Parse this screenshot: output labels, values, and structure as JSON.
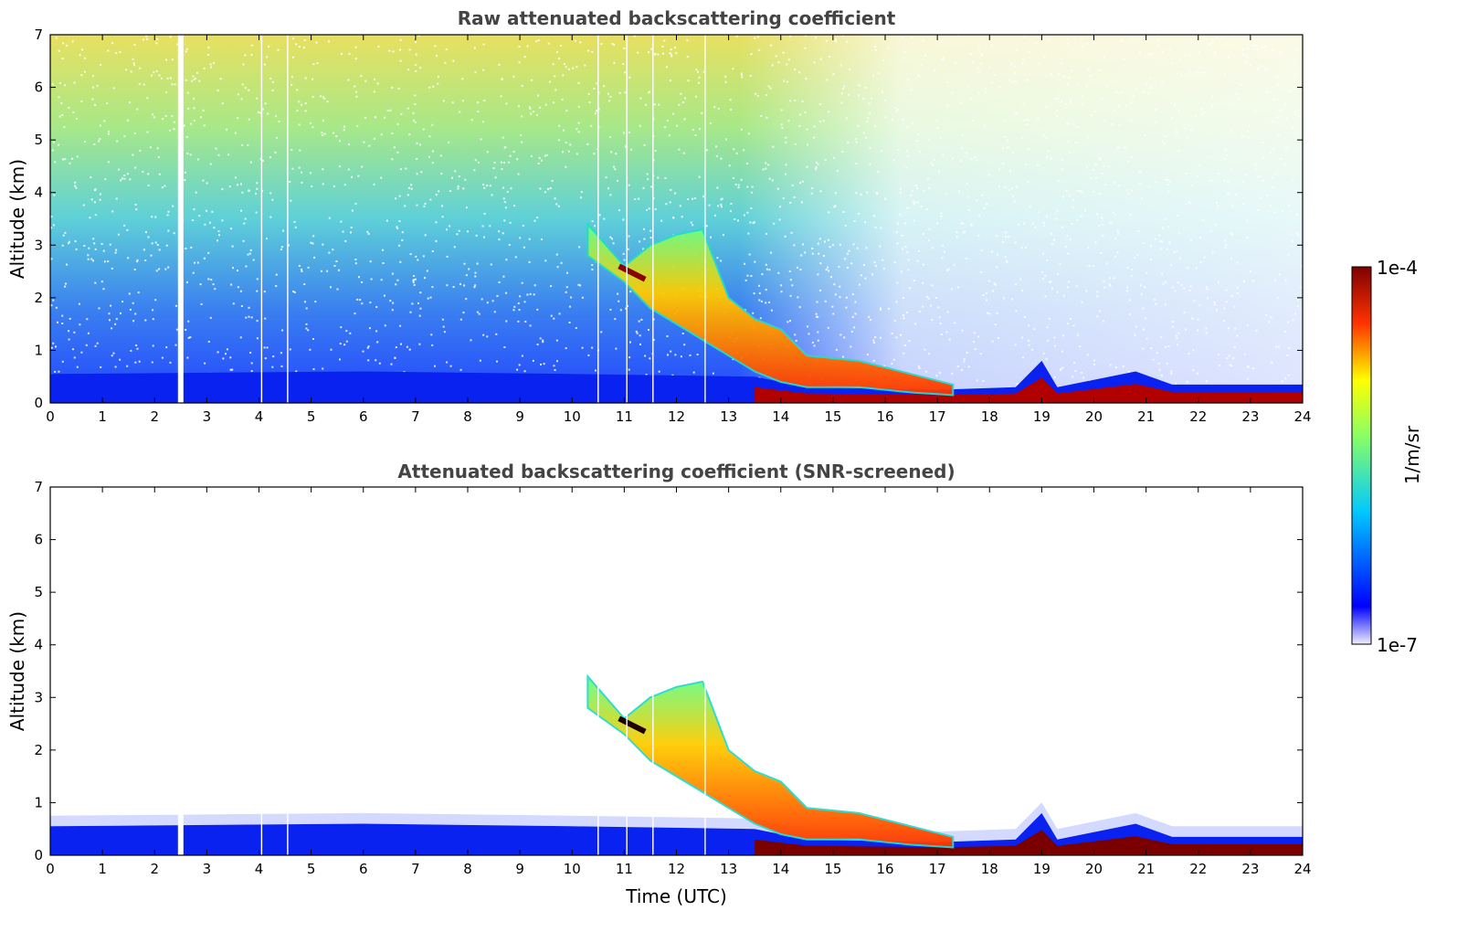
{
  "chart_data": [
    {
      "type": "heatmap",
      "title": "Raw attenuated backscattering coefficient",
      "xlabel": "",
      "ylabel": "Altitude (km)",
      "xlim": [
        0,
        24
      ],
      "ylim": [
        0,
        7
      ],
      "xticks": [
        "0",
        "1",
        "2",
        "3",
        "4",
        "5",
        "6",
        "7",
        "8",
        "9",
        "10",
        "11",
        "12",
        "13",
        "14",
        "15",
        "16",
        "17",
        "18",
        "19",
        "20",
        "21",
        "22",
        "23",
        "24"
      ],
      "yticks": [
        "0",
        "1",
        "2",
        "3",
        "4",
        "5",
        "6",
        "7"
      ],
      "boundary_layer_top_km": [
        {
          "time": 0,
          "top": 0.55
        },
        {
          "time": 6,
          "top": 0.6
        },
        {
          "time": 10,
          "top": 0.55
        },
        {
          "time": 13.5,
          "top": 0.5
        },
        {
          "time": 14.5,
          "top": 0.3
        },
        {
          "time": 17,
          "top": 0.25
        },
        {
          "time": 18.5,
          "top": 0.3
        },
        {
          "time": 19,
          "top": 0.8
        },
        {
          "time": 19.3,
          "top": 0.3
        },
        {
          "time": 20.8,
          "top": 0.6
        },
        {
          "time": 21.5,
          "top": 0.35
        },
        {
          "time": 24,
          "top": 0.35
        }
      ],
      "aerosol_layer_km": [
        {
          "time": 10.3,
          "bottom": 2.8,
          "top": 3.4
        },
        {
          "time": 11.0,
          "bottom": 2.3,
          "top": 2.6
        },
        {
          "time": 11.5,
          "bottom": 1.8,
          "top": 3.0
        },
        {
          "time": 12.0,
          "bottom": 1.5,
          "top": 3.2
        },
        {
          "time": 12.5,
          "bottom": 1.2,
          "top": 3.3
        },
        {
          "time": 13.0,
          "bottom": 0.9,
          "top": 2.0
        },
        {
          "time": 13.5,
          "bottom": 0.6,
          "top": 1.6
        },
        {
          "time": 14.0,
          "bottom": 0.4,
          "top": 1.4
        },
        {
          "time": 14.5,
          "bottom": 0.3,
          "top": 0.9
        },
        {
          "time": 15.5,
          "bottom": 0.3,
          "top": 0.8
        },
        {
          "time": 16.5,
          "bottom": 0.2,
          "top": 0.55
        },
        {
          "time": 17.3,
          "bottom": 0.15,
          "top": 0.35
        }
      ],
      "data_gaps_time": [
        2.5,
        4.05,
        4.55,
        10.5,
        11.05,
        11.55,
        12.55
      ]
    },
    {
      "type": "heatmap",
      "title": "Attenuated backscattering coefficient (SNR-screened)",
      "xlabel": "Time (UTC)",
      "ylabel": "Altitude (km)",
      "xlim": [
        0,
        24
      ],
      "ylim": [
        0,
        7
      ],
      "xticks": [
        "0",
        "1",
        "2",
        "3",
        "4",
        "5",
        "6",
        "7",
        "8",
        "9",
        "10",
        "11",
        "12",
        "13",
        "14",
        "15",
        "16",
        "17",
        "18",
        "19",
        "20",
        "21",
        "22",
        "23",
        "24"
      ],
      "yticks": [
        "0",
        "1",
        "2",
        "3",
        "4",
        "5",
        "6",
        "7"
      ],
      "screened": true
    }
  ],
  "colorbar": {
    "label": "1/m/sr",
    "max_label": "1e-4",
    "min_label": "1e-7",
    "scale": "log",
    "colors": [
      "#eeeeff",
      "#0000ff",
      "#00ffff",
      "#ffff00",
      "#ff0000",
      "#7f0000"
    ]
  }
}
